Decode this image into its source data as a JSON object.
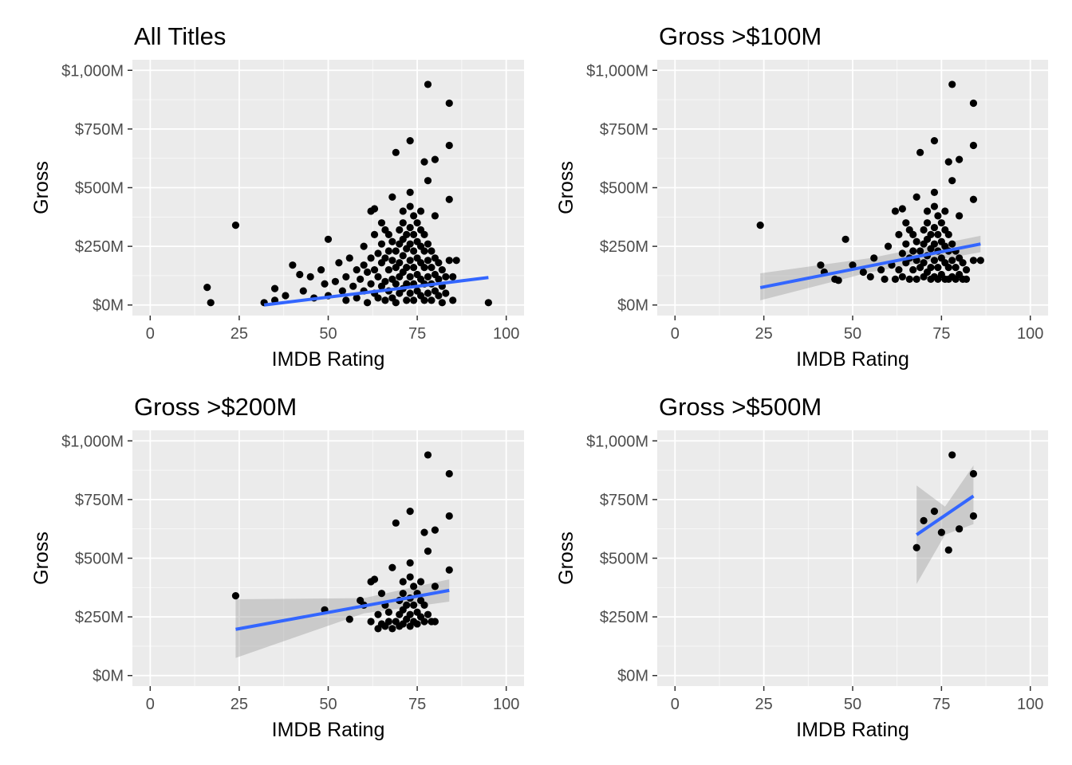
{
  "chart_data": [
    {
      "type": "scatter",
      "title": "All Titles",
      "xlabel": "IMDB Rating",
      "ylabel": "Gross",
      "xlim": [
        -5,
        105
      ],
      "ylim": [
        -45,
        1045
      ],
      "xticks": [
        0,
        25,
        50,
        75,
        100
      ],
      "xtick_labels": [
        "0",
        "25",
        "50",
        "75",
        "100"
      ],
      "yticks": [
        0,
        250,
        500,
        750,
        1000
      ],
      "ytick_labels": [
        "$0M",
        "$250M",
        "$500M",
        "$750M",
        "$1,000M"
      ],
      "grid": true,
      "trend": {
        "x": [
          32,
          95
        ],
        "y": [
          0,
          117
        ],
        "band": null
      },
      "points": [
        [
          16,
          75
        ],
        [
          17,
          10
        ],
        [
          24,
          340
        ],
        [
          32,
          10
        ],
        [
          35,
          20
        ],
        [
          35,
          70
        ],
        [
          38,
          40
        ],
        [
          40,
          170
        ],
        [
          42,
          130
        ],
        [
          43,
          60
        ],
        [
          45,
          120
        ],
        [
          46,
          30
        ],
        [
          48,
          150
        ],
        [
          49,
          90
        ],
        [
          50,
          280
        ],
        [
          50,
          40
        ],
        [
          52,
          100
        ],
        [
          53,
          180
        ],
        [
          54,
          60
        ],
        [
          55,
          120
        ],
        [
          55,
          20
        ],
        [
          56,
          200
        ],
        [
          57,
          80
        ],
        [
          58,
          150
        ],
        [
          58,
          30
        ],
        [
          59,
          110
        ],
        [
          60,
          250
        ],
        [
          60,
          170
        ],
        [
          60,
          60
        ],
        [
          61,
          140
        ],
        [
          61,
          10
        ],
        [
          62,
          200
        ],
        [
          62,
          90
        ],
        [
          62,
          400
        ],
        [
          63,
          300
        ],
        [
          63,
          150
        ],
        [
          63,
          50
        ],
        [
          63,
          410
        ],
        [
          64,
          220
        ],
        [
          64,
          120
        ],
        [
          64,
          30
        ],
        [
          65,
          350
        ],
        [
          65,
          260
        ],
        [
          65,
          180
        ],
        [
          65,
          80
        ],
        [
          66,
          320
        ],
        [
          66,
          200
        ],
        [
          66,
          100
        ],
        [
          66,
          20
        ],
        [
          67,
          300
        ],
        [
          67,
          230
        ],
        [
          67,
          150
        ],
        [
          67,
          60
        ],
        [
          68,
          270
        ],
        [
          68,
          190
        ],
        [
          68,
          110
        ],
        [
          68,
          30
        ],
        [
          68,
          460
        ],
        [
          69,
          230
        ],
        [
          69,
          160
        ],
        [
          69,
          90
        ],
        [
          69,
          10
        ],
        [
          69,
          650
        ],
        [
          70,
          320
        ],
        [
          70,
          260
        ],
        [
          70,
          180
        ],
        [
          70,
          120
        ],
        [
          70,
          50
        ],
        [
          71,
          350
        ],
        [
          71,
          280
        ],
        [
          71,
          210
        ],
        [
          71,
          140
        ],
        [
          71,
          70
        ],
        [
          71,
          400
        ],
        [
          72,
          300
        ],
        [
          72,
          240
        ],
        [
          72,
          160
        ],
        [
          72,
          90
        ],
        [
          72,
          20
        ],
        [
          73,
          700
        ],
        [
          73,
          480
        ],
        [
          73,
          420
        ],
        [
          73,
          330
        ],
        [
          73,
          260
        ],
        [
          73,
          190
        ],
        [
          73,
          120
        ],
        [
          73,
          50
        ],
        [
          74,
          380
        ],
        [
          74,
          300
        ],
        [
          74,
          230
        ],
        [
          74,
          160
        ],
        [
          74,
          90
        ],
        [
          74,
          20
        ],
        [
          75,
          350
        ],
        [
          75,
          270
        ],
        [
          75,
          200
        ],
        [
          75,
          130
        ],
        [
          75,
          60
        ],
        [
          76,
          400
        ],
        [
          76,
          320
        ],
        [
          76,
          250
        ],
        [
          76,
          180
        ],
        [
          76,
          110
        ],
        [
          76,
          40
        ],
        [
          77,
          610
        ],
        [
          77,
          300
        ],
        [
          77,
          230
        ],
        [
          77,
          160
        ],
        [
          77,
          90
        ],
        [
          77,
          20
        ],
        [
          78,
          940
        ],
        [
          78,
          530
        ],
        [
          78,
          260
        ],
        [
          78,
          190
        ],
        [
          78,
          120
        ],
        [
          78,
          50
        ],
        [
          79,
          230
        ],
        [
          79,
          160
        ],
        [
          79,
          90
        ],
        [
          79,
          20
        ],
        [
          80,
          620
        ],
        [
          80,
          380
        ],
        [
          80,
          200
        ],
        [
          80,
          130
        ],
        [
          80,
          60
        ],
        [
          81,
          180
        ],
        [
          81,
          110
        ],
        [
          81,
          40
        ],
        [
          82,
          150
        ],
        [
          82,
          80
        ],
        [
          82,
          10
        ],
        [
          83,
          120
        ],
        [
          83,
          50
        ],
        [
          84,
          860
        ],
        [
          84,
          680
        ],
        [
          84,
          450
        ],
        [
          84,
          190
        ],
        [
          85,
          120
        ],
        [
          85,
          20
        ],
        [
          86,
          190
        ],
        [
          95,
          10
        ]
      ]
    },
    {
      "type": "scatter",
      "title": "Gross >$100M",
      "xlabel": "IMDB Rating",
      "ylabel": "Gross",
      "xlim": [
        -5,
        105
      ],
      "ylim": [
        -45,
        1045
      ],
      "xticks": [
        0,
        25,
        50,
        75,
        100
      ],
      "xtick_labels": [
        "0",
        "25",
        "50",
        "75",
        "100"
      ],
      "yticks": [
        0,
        250,
        500,
        750,
        1000
      ],
      "ytick_labels": [
        "$0M",
        "$250M",
        "$500M",
        "$750M",
        "$1,000M"
      ],
      "grid": true,
      "trend": {
        "x": [
          24,
          86
        ],
        "y": [
          74,
          260
        ],
        "band": [
          [
            24,
            20,
            135
          ],
          [
            55,
            140,
            200
          ],
          [
            86,
            225,
            295
          ]
        ]
      },
      "points": [
        [
          24,
          340
        ],
        [
          41,
          170
        ],
        [
          42,
          140
        ],
        [
          45,
          110
        ],
        [
          46,
          105
        ],
        [
          48,
          280
        ],
        [
          50,
          170
        ],
        [
          53,
          140
        ],
        [
          55,
          120
        ],
        [
          56,
          200
        ],
        [
          58,
          150
        ],
        [
          59,
          110
        ],
        [
          60,
          250
        ],
        [
          61,
          170
        ],
        [
          62,
          400
        ],
        [
          62,
          110
        ],
        [
          63,
          300
        ],
        [
          63,
          150
        ],
        [
          64,
          410
        ],
        [
          64,
          220
        ],
        [
          64,
          120
        ],
        [
          65,
          350
        ],
        [
          65,
          260
        ],
        [
          65,
          180
        ],
        [
          66,
          320
        ],
        [
          66,
          200
        ],
        [
          66,
          110
        ],
        [
          67,
          300
        ],
        [
          67,
          230
        ],
        [
          67,
          150
        ],
        [
          68,
          460
        ],
        [
          68,
          270
        ],
        [
          68,
          190
        ],
        [
          68,
          110
        ],
        [
          69,
          650
        ],
        [
          69,
          230
        ],
        [
          69,
          160
        ],
        [
          70,
          320
        ],
        [
          70,
          260
        ],
        [
          70,
          180
        ],
        [
          70,
          120
        ],
        [
          71,
          400
        ],
        [
          71,
          350
        ],
        [
          71,
          280
        ],
        [
          71,
          210
        ],
        [
          71,
          140
        ],
        [
          72,
          300
        ],
        [
          72,
          240
        ],
        [
          72,
          160
        ],
        [
          72,
          110
        ],
        [
          73,
          700
        ],
        [
          73,
          480
        ],
        [
          73,
          420
        ],
        [
          73,
          330
        ],
        [
          73,
          260
        ],
        [
          73,
          190
        ],
        [
          73,
          120
        ],
        [
          74,
          380
        ],
        [
          74,
          300
        ],
        [
          74,
          230
        ],
        [
          74,
          160
        ],
        [
          74,
          110
        ],
        [
          75,
          350
        ],
        [
          75,
          270
        ],
        [
          75,
          200
        ],
        [
          75,
          130
        ],
        [
          76,
          400
        ],
        [
          76,
          320
        ],
        [
          76,
          250
        ],
        [
          76,
          180
        ],
        [
          76,
          110
        ],
        [
          77,
          610
        ],
        [
          77,
          300
        ],
        [
          77,
          230
        ],
        [
          77,
          160
        ],
        [
          77,
          110
        ],
        [
          78,
          940
        ],
        [
          78,
          530
        ],
        [
          78,
          260
        ],
        [
          78,
          190
        ],
        [
          78,
          120
        ],
        [
          79,
          230
        ],
        [
          79,
          160
        ],
        [
          79,
          110
        ],
        [
          80,
          620
        ],
        [
          80,
          380
        ],
        [
          80,
          200
        ],
        [
          80,
          130
        ],
        [
          81,
          180
        ],
        [
          81,
          110
        ],
        [
          82,
          150
        ],
        [
          82,
          110
        ],
        [
          84,
          860
        ],
        [
          84,
          680
        ],
        [
          84,
          450
        ],
        [
          84,
          190
        ],
        [
          86,
          190
        ]
      ]
    },
    {
      "type": "scatter",
      "title": "Gross >$200M",
      "xlabel": "IMDB Rating",
      "ylabel": "Gross",
      "xlim": [
        -5,
        105
      ],
      "ylim": [
        -45,
        1045
      ],
      "xticks": [
        0,
        25,
        50,
        75,
        100
      ],
      "xtick_labels": [
        "0",
        "25",
        "50",
        "75",
        "100"
      ],
      "yticks": [
        0,
        250,
        500,
        750,
        1000
      ],
      "ytick_labels": [
        "$0M",
        "$250M",
        "$500M",
        "$750M",
        "$1,000M"
      ],
      "grid": true,
      "trend": {
        "x": [
          24,
          84
        ],
        "y": [
          197,
          363
        ],
        "band": [
          [
            24,
            75,
            325
          ],
          [
            60,
            265,
            330
          ],
          [
            84,
            315,
            410
          ]
        ]
      },
      "points": [
        [
          24,
          340
        ],
        [
          49,
          280
        ],
        [
          56,
          240
        ],
        [
          59,
          320
        ],
        [
          60,
          300
        ],
        [
          62,
          400
        ],
        [
          62,
          230
        ],
        [
          63,
          410
        ],
        [
          64,
          200
        ],
        [
          64,
          260
        ],
        [
          65,
          350
        ],
        [
          65,
          220
        ],
        [
          66,
          300
        ],
        [
          66,
          210
        ],
        [
          67,
          230
        ],
        [
          67,
          270
        ],
        [
          68,
          460
        ],
        [
          68,
          200
        ],
        [
          69,
          650
        ],
        [
          69,
          230
        ],
        [
          70,
          320
        ],
        [
          70,
          260
        ],
        [
          70,
          210
        ],
        [
          71,
          400
        ],
        [
          71,
          350
        ],
        [
          71,
          280
        ],
        [
          71,
          220
        ],
        [
          72,
          300
        ],
        [
          72,
          240
        ],
        [
          73,
          700
        ],
        [
          73,
          480
        ],
        [
          73,
          420
        ],
        [
          73,
          330
        ],
        [
          73,
          260
        ],
        [
          73,
          210
        ],
        [
          74,
          380
        ],
        [
          74,
          300
        ],
        [
          74,
          230
        ],
        [
          75,
          350
        ],
        [
          75,
          270
        ],
        [
          75,
          220
        ],
        [
          76,
          400
        ],
        [
          76,
          320
        ],
        [
          76,
          250
        ],
        [
          77,
          610
        ],
        [
          77,
          300
        ],
        [
          77,
          230
        ],
        [
          78,
          940
        ],
        [
          78,
          530
        ],
        [
          78,
          260
        ],
        [
          79,
          230
        ],
        [
          80,
          620
        ],
        [
          80,
          380
        ],
        [
          80,
          230
        ],
        [
          84,
          860
        ],
        [
          84,
          680
        ],
        [
          84,
          450
        ]
      ]
    },
    {
      "type": "scatter",
      "title": "Gross >$500M",
      "xlabel": "IMDB Rating",
      "ylabel": "Gross",
      "xlim": [
        -5,
        105
      ],
      "ylim": [
        -45,
        1045
      ],
      "xticks": [
        0,
        25,
        50,
        75,
        100
      ],
      "xtick_labels": [
        "0",
        "25",
        "50",
        "75",
        "100"
      ],
      "yticks": [
        0,
        250,
        500,
        750,
        1000
      ],
      "ytick_labels": [
        "$0M",
        "$250M",
        "$500M",
        "$750M",
        "$1,000M"
      ],
      "grid": true,
      "trend": {
        "x": [
          68,
          84
        ],
        "y": [
          600,
          765
        ],
        "band": [
          [
            68,
            390,
            810
          ],
          [
            76,
            600,
            720
          ],
          [
            84,
            645,
            895
          ]
        ]
      },
      "points": [
        [
          68,
          545
        ],
        [
          70,
          660
        ],
        [
          73,
          700
        ],
        [
          75,
          610
        ],
        [
          77,
          535
        ],
        [
          78,
          940
        ],
        [
          80,
          625
        ],
        [
          84,
          860
        ],
        [
          84,
          680
        ]
      ]
    }
  ],
  "colors": {
    "panel_bg": "#ebebeb",
    "grid_major": "#ffffff",
    "point": "#000000",
    "trend_line": "#3366ff",
    "band": "#999999",
    "tick_text": "#4d4d4d"
  }
}
